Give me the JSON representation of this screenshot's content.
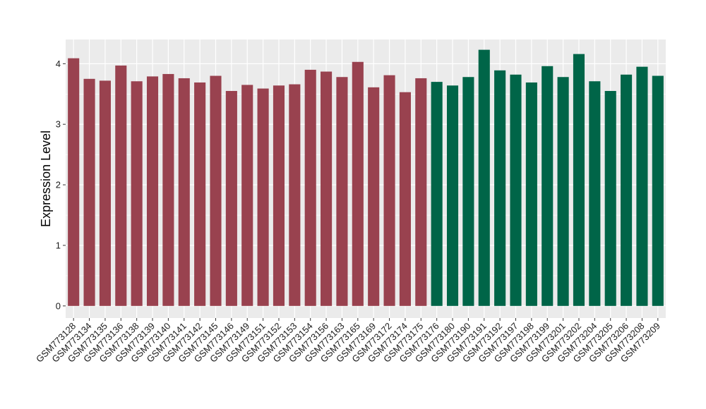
{
  "chart_data": {
    "type": "bar",
    "title": "",
    "xlabel": "",
    "ylabel": "Expression Level",
    "ylim": [
      -0.2,
      4.4
    ],
    "yticks": [
      0,
      1,
      2,
      3,
      4
    ],
    "grid": true,
    "legend": "none",
    "categories": [
      "GSM773128",
      "GSM773134",
      "GSM773135",
      "GSM773136",
      "GSM773138",
      "GSM773139",
      "GSM773140",
      "GSM773141",
      "GSM773142",
      "GSM773145",
      "GSM773146",
      "GSM773149",
      "GSM773151",
      "GSM773152",
      "GSM773153",
      "GSM773154",
      "GSM773156",
      "GSM773163",
      "GSM773165",
      "GSM773169",
      "GSM773172",
      "GSM773174",
      "GSM773175",
      "GSM773176",
      "GSM773180",
      "GSM773190",
      "GSM773191",
      "GSM773192",
      "GSM773197",
      "GSM773198",
      "GSM773199",
      "GSM773201",
      "GSM773202",
      "GSM773204",
      "GSM773205",
      "GSM773206",
      "GSM773208",
      "GSM773209"
    ],
    "values": [
      4.09,
      3.75,
      3.72,
      3.97,
      3.71,
      3.79,
      3.83,
      3.76,
      3.69,
      3.8,
      3.55,
      3.65,
      3.59,
      3.64,
      3.66,
      3.9,
      3.87,
      3.78,
      4.03,
      3.61,
      3.81,
      3.53,
      3.76,
      3.7,
      3.64,
      3.78,
      4.23,
      3.89,
      3.82,
      3.69,
      3.96,
      3.78,
      4.16,
      3.71,
      3.55,
      3.82,
      3.95,
      3.8
    ],
    "groups": [
      "a",
      "a",
      "a",
      "a",
      "a",
      "a",
      "a",
      "a",
      "a",
      "a",
      "a",
      "a",
      "a",
      "a",
      "a",
      "a",
      "a",
      "a",
      "a",
      "a",
      "a",
      "a",
      "a",
      "b",
      "b",
      "b",
      "b",
      "b",
      "b",
      "b",
      "b",
      "b",
      "b",
      "b",
      "b",
      "b",
      "b",
      "b"
    ],
    "colors": {
      "a": "#99424f",
      "b": "#006548",
      "panel": "#ebebeb",
      "grid": "#ffffff"
    }
  }
}
